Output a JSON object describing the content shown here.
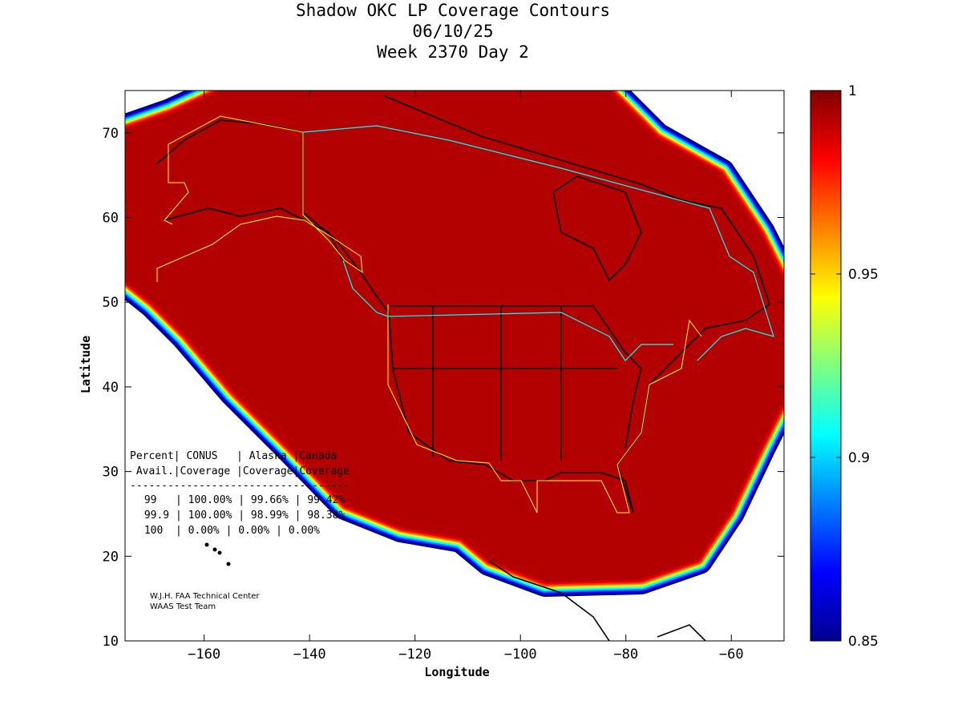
{
  "chart_data": {
    "type": "heatmap",
    "title": [
      "Shadow OKC LP Coverage Contours",
      "06/10/25",
      "Week 2370 Day 2"
    ],
    "xlabel": "Longitude",
    "ylabel": "Latitude",
    "xlim": [
      -175,
      -50
    ],
    "ylim": [
      10,
      75
    ],
    "xticks": [
      -160,
      -140,
      -120,
      -100,
      -80,
      -60
    ],
    "yticks": [
      10,
      20,
      30,
      40,
      50,
      60,
      70
    ],
    "colorbar": {
      "range": [
        0.85,
        1
      ],
      "ticks": [
        0.85,
        0.9,
        0.95,
        1
      ],
      "tick_labels": [
        "0.85",
        "0.9",
        "0.95",
        "1"
      ],
      "colormap": "jet"
    },
    "table": {
      "header1": "Percent| CONUS   | Alaska |Canada",
      "header2": " Avail.|Coverage |Coverage|Coverage",
      "separator": "-----------------------------------",
      "rows": [
        " 99   | 100.00% | 99.66% | 99.42%",
        " 99.9 | 100.00% | 98.99% | 98.38%",
        " 100  | 0.00% | 0.00% | 0.00%"
      ],
      "columns": [
        "Percent Avail.",
        "CONUS Coverage",
        "Alaska Coverage",
        "Canada Coverage"
      ],
      "values": [
        [
          "99",
          "100.00%",
          "99.66%",
          "99.42%"
        ],
        [
          "99.9",
          "100.00%",
          "98.99%",
          "98.38%"
        ],
        [
          "100",
          "0.00%",
          "0.00%",
          "0.00%"
        ]
      ]
    },
    "credits": [
      "W.J.H. FAA Technical Center",
      "WAAS Test Team"
    ]
  },
  "colors": {
    "coverage_max": "#b30000",
    "conus_boundary": "#ffff00",
    "canada_boundary": "#00ffff"
  }
}
